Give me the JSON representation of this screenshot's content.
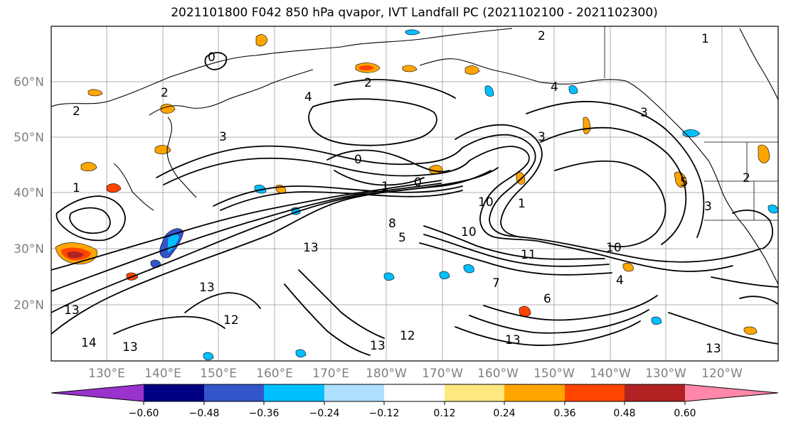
{
  "title": "2021101800 F042 850 hPa qvapor, IVT Landfall PC (2021102100 - 2021102300)",
  "lat_labels": [
    "60°N",
    "50°N",
    "40°N",
    "30°N",
    "20°N"
  ],
  "lon_labels": [
    "130°E",
    "140°E",
    "150°E",
    "160°E",
    "170°E",
    "180°W",
    "170°W",
    "160°W",
    "150°W",
    "140°W",
    "130°W",
    "120°W"
  ],
  "colorbar": {
    "colors": [
      "#9933cc",
      "#000080",
      "#3355cc",
      "#00bfff",
      "#b0e0ff",
      "#ffffff",
      "#ffe880",
      "#ffa500",
      "#ff4500",
      "#b22222",
      "#ff88aa"
    ],
    "tick_labels": [
      "−0.60",
      "−0.48",
      "−0.36",
      "−0.24",
      "−0.12",
      "0.12",
      "0.24",
      "0.36",
      "0.48",
      "0.60"
    ]
  },
  "contour_labels": [
    "1",
    "2",
    "0",
    "2",
    "2",
    "3",
    "0",
    "0",
    "1",
    "1",
    "8",
    "5",
    "13",
    "13",
    "12",
    "13",
    "14",
    "13",
    "12",
    "13",
    "7",
    "10",
    "6",
    "11",
    "4",
    "3",
    "5",
    "2",
    "1",
    "4",
    "13",
    "10",
    "2",
    "3",
    "4",
    "13",
    "10",
    "3"
  ]
}
